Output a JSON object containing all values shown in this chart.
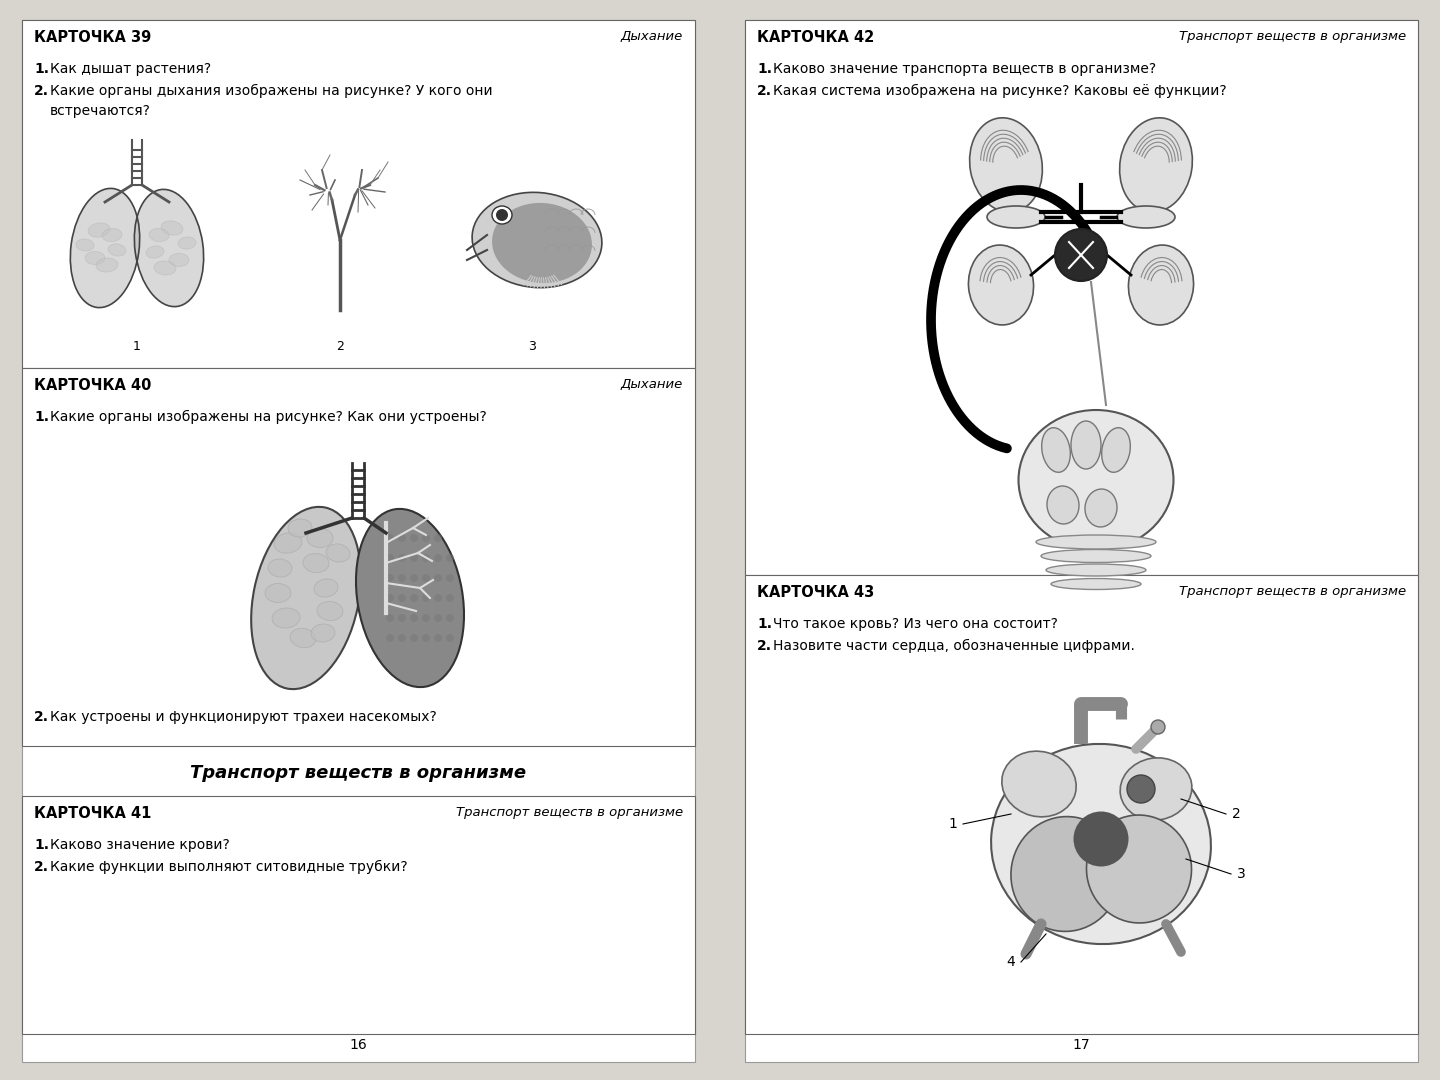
{
  "page_bg": "#d8d4ce",
  "card_bg": "#ffffff",
  "left_page_num": "16",
  "right_page_num": "17",
  "card39_title": "КАРТОЧКА 39",
  "card39_topic": "Дыхание",
  "card39_q1_bold": "1.",
  "card39_q1_text": " Как дышат растения?",
  "card39_q2_bold": "2.",
  "card39_q2_text": " Какие органы дыхания изображены на рисунке? У кого они",
  "card39_q2_cont": "     встречаются?",
  "card40_title": "КАРТОЧКА 40",
  "card40_topic": "Дыхание",
  "card40_q1_bold": "1.",
  "card40_q1_text": " Какие органы изображены на рисунке? Как они устроены?",
  "card40_q2_bold": "2.",
  "card40_q2_text": " Как устроены и функционируют трахеи насекомых?",
  "section_title": "Транспорт веществ в организме",
  "card41_title": "КАРТОЧКА 41",
  "card41_topic": "Транспорт веществ в организме",
  "card41_q1_bold": "1.",
  "card41_q1_text": " Каково значение крови?",
  "card41_q2_bold": "2.",
  "card41_q2_text": " Какие функции выполняют ситовидные трубки?",
  "card42_title": "КАРТОЧКА 42",
  "card42_topic": "Транспорт веществ в организме",
  "card42_q1_bold": "1.",
  "card42_q1_text": " Каково значение транспорта веществ в организме?",
  "card42_q2_bold": "2.",
  "card42_q2_text": " Какая система изображена на рисунке? Каковы её функции?",
  "card43_title": "КАРТОЧКА 43",
  "card43_topic": "Транспорт веществ в организме",
  "card43_q1_bold": "1.",
  "card43_q1_text": " Что такое кровь? Из чего она состоит?",
  "card43_q2_bold": "2.",
  "card43_q2_text": " Назовите части сердца, обозначенные цифрами.",
  "title_fs": 10.5,
  "topic_fs": 9.5,
  "body_fs": 10,
  "section_fs": 13,
  "pagenum_fs": 10
}
